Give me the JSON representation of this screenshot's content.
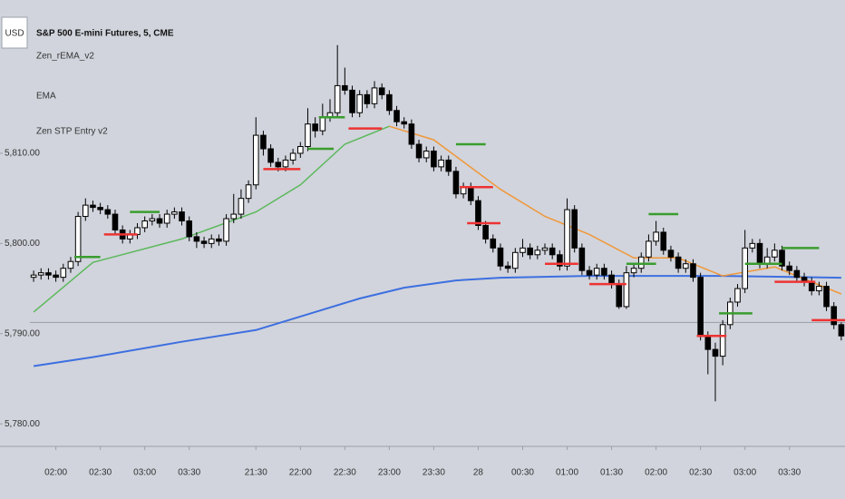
{
  "chart_data": {
    "type": "candlestick",
    "title": "S&P 500 E-mini Futures, 5, CME",
    "currency": "USD",
    "indicators": [
      "Zen_rEMA_v2",
      "EMA",
      "Zen STP Entry v2"
    ],
    "categories": [
      null,
      null,
      null,
      "02:00",
      null,
      null,
      null,
      null,
      null,
      "02:30",
      null,
      null,
      null,
      null,
      null,
      "03:00",
      null,
      null,
      null,
      null,
      null,
      "03:30",
      null,
      null,
      null,
      null,
      null,
      null,
      null,
      null,
      "21:30",
      null,
      null,
      null,
      null,
      null,
      "22:00",
      null,
      null,
      null,
      null,
      null,
      "22:30",
      null,
      null,
      null,
      null,
      null,
      "23:00",
      null,
      null,
      null,
      null,
      null,
      "23:30",
      null,
      null,
      null,
      null,
      null,
      "28",
      null,
      null,
      null,
      null,
      null,
      "00:30",
      null,
      null,
      null,
      null,
      null,
      "01:00",
      null,
      null,
      null,
      null,
      null,
      "01:30",
      null,
      null,
      null,
      null,
      null,
      "02:00",
      null,
      null,
      null,
      null,
      null,
      "02:30",
      null,
      null,
      null,
      null,
      null,
      "03:00",
      null,
      null,
      null,
      null,
      null,
      "03:30",
      null,
      null,
      null,
      null,
      null,
      null,
      null
    ],
    "open": [
      5796.25,
      5796.5,
      5796.75,
      5796.5,
      5796.25,
      5797.25,
      5798,
      5803,
      5804.25,
      5804,
      5803.75,
      5803.25,
      5801.5,
      5800.5,
      5801,
      5801.75,
      5802.5,
      5802.75,
      5802.25,
      5803.25,
      5803.5,
      5802.5,
      5800.75,
      5800.25,
      5800,
      5800.5,
      5800.25,
      5802.75,
      5803.25,
      5805,
      5806.5,
      5812,
      5810.5,
      5809,
      5808.5,
      5809.25,
      5810,
      5810.75,
      5813.25,
      5812.5,
      5814,
      5814.5,
      5817.5,
      5817,
      5814.5,
      5816.5,
      5815.5,
      5817.25,
      5816.5,
      5814.75,
      5813.5,
      5813.25,
      5811,
      5809.5,
      5810.25,
      5808.5,
      5809.25,
      5808,
      5805.5,
      5806.25,
      5804.75,
      5802,
      5800.5,
      5799.5,
      5797.5,
      5797.25,
      5799,
      5799.5,
      5798.75,
      5799.25,
      5799.5,
      5798.75,
      5797.5,
      5803.75,
      5799.5,
      5797,
      5796.5,
      5797.25,
      5796.5,
      5795.5,
      5793,
      5796.75,
      5797.25,
      5798.5,
      5800.25,
      5801.25,
      5799.25,
      5798.5,
      5797.25,
      5797.75,
      5796.25,
      5789.75,
      5788.25,
      5787.5,
      5791,
      5793.5,
      5795,
      5799.5,
      5800,
      5797.75,
      5798.5,
      5799.25,
      5797.5,
      5797,
      5796.25,
      5795.75,
      5794.75,
      5795.25,
      5793,
      5791
    ],
    "high": [
      5797,
      5797.25,
      5797.25,
      5797,
      5797.75,
      5798.5,
      5803.5,
      5805,
      5804.75,
      5804.5,
      5804.25,
      5803.75,
      5802,
      5801.5,
      5802.25,
      5803,
      5803.25,
      5803.25,
      5803.75,
      5804,
      5804,
      5803,
      5801.25,
      5800.75,
      5801,
      5801,
      5803.25,
      5805.5,
      5806,
      5807,
      5814,
      5812.5,
      5811,
      5809.5,
      5809.75,
      5810.5,
      5811.25,
      5815,
      5814,
      5815.5,
      5816,
      5822,
      5819.5,
      5817.5,
      5817,
      5817,
      5818,
      5817.75,
      5817,
      5815.25,
      5814,
      5813.75,
      5811.5,
      5810.75,
      5810.75,
      5809.75,
      5809.75,
      5808.5,
      5806.75,
      5806.75,
      5805.25,
      5802.5,
      5801,
      5800,
      5798,
      5799.5,
      5800.5,
      5800,
      5799.75,
      5800,
      5800,
      5799.25,
      5805,
      5804.25,
      5800,
      5797.5,
      5797.75,
      5797.75,
      5797,
      5796,
      5797.5,
      5797.75,
      5799,
      5801,
      5802.5,
      5801.75,
      5799.75,
      5799,
      5798.25,
      5798.25,
      5796.75,
      5790.25,
      5789,
      5791.5,
      5794,
      5795.5,
      5801.5,
      5800.5,
      5800.5,
      5799.5,
      5800,
      5799.75,
      5798,
      5797.5,
      5796.75,
      5796.25,
      5795.75,
      5795.75,
      5793.5,
      5791.25
    ],
    "low": [
      5795.75,
      5796,
      5796,
      5795.75,
      5795.75,
      5796.75,
      5797.5,
      5802.5,
      5803.5,
      5803.25,
      5802.75,
      5801,
      5800,
      5800,
      5800.5,
      5801.25,
      5802,
      5801.75,
      5801.75,
      5802.75,
      5802,
      5800.25,
      5799.5,
      5799.5,
      5799.5,
      5799.75,
      5799.75,
      5802.25,
      5802.75,
      5804.5,
      5806,
      5809.75,
      5808.5,
      5808,
      5808,
      5808.75,
      5809.5,
      5810.25,
      5811.75,
      5812,
      5813.5,
      5814,
      5816.5,
      5814,
      5814,
      5815,
      5815,
      5816,
      5814.25,
      5813,
      5812.75,
      5810.5,
      5809,
      5809,
      5808,
      5808,
      5807.5,
      5805,
      5805,
      5804.25,
      5801.5,
      5800,
      5799,
      5797,
      5796.75,
      5796.75,
      5798.5,
      5798.25,
      5798.25,
      5798.75,
      5798.25,
      5797,
      5797,
      5799,
      5796.5,
      5796,
      5796,
      5796,
      5795,
      5792.75,
      5792.75,
      5796.25,
      5796.75,
      5798,
      5799.75,
      5798.75,
      5798,
      5796.75,
      5796.75,
      5795.75,
      5789.25,
      5785.5,
      5782.5,
      5786.5,
      5790.5,
      5793,
      5794.5,
      5799,
      5797.25,
      5797.25,
      5798,
      5797,
      5796.5,
      5795.75,
      5795.25,
      5794.25,
      5794.25,
      5792.5,
      5790.5,
      5789.25
    ],
    "close": [
      5796.5,
      5796.75,
      5796.5,
      5796.25,
      5797.25,
      5798,
      5803,
      5804.25,
      5804,
      5803.75,
      5803.25,
      5801.5,
      5800.5,
      5801,
      5801.75,
      5802.5,
      5802.75,
      5802.25,
      5803.25,
      5803.5,
      5802.5,
      5800.75,
      5800.25,
      5800,
      5800.5,
      5800.25,
      5802.75,
      5803.25,
      5805,
      5806.5,
      5812,
      5810.5,
      5809,
      5808.5,
      5809.25,
      5810,
      5810.75,
      5813.25,
      5812.5,
      5814,
      5814.5,
      5817.5,
      5817,
      5814.5,
      5816.5,
      5815.5,
      5817.25,
      5816.5,
      5814.75,
      5813.5,
      5813.25,
      5811,
      5809.5,
      5810.25,
      5808.5,
      5809.25,
      5808,
      5805.5,
      5806.25,
      5804.75,
      5802,
      5800.5,
      5799.5,
      5797.5,
      5797.25,
      5799,
      5799.5,
      5798.75,
      5799.25,
      5799.5,
      5798.75,
      5797.5,
      5803.75,
      5799.5,
      5797,
      5796.5,
      5797.25,
      5796.5,
      5795.5,
      5793,
      5796.75,
      5797.25,
      5798.5,
      5800.25,
      5801.25,
      5799.25,
      5798.5,
      5797.25,
      5797.75,
      5796.25,
      5789.75,
      5788.25,
      5787.5,
      5791,
      5793.5,
      5795,
      5799.5,
      5800,
      5797.75,
      5798.5,
      5799.25,
      5797.5,
      5797,
      5796.25,
      5795.75,
      5794.75,
      5795.25,
      5793,
      5791,
      5789.75
    ],
    "up_color": "#ffffff",
    "down_color": "#000000",
    "ylim": [
      5777.5,
      5827
    ],
    "yticks": [
      {
        "value": 5780,
        "label": "5,780.00"
      },
      {
        "value": 5790,
        "label": "5,790.00"
      },
      {
        "value": 5800,
        "label": "5,800.00"
      },
      {
        "value": 5810,
        "label": "5,810.00"
      }
    ],
    "reference_line": 5791.25,
    "series": [
      {
        "color": "#3d6fe0",
        "x": [
          0,
          8,
          20,
          30,
          38,
          44,
          50,
          57,
          63,
          75,
          93,
          109
        ],
        "values": [
          5786.4,
          5787.4,
          5789.1,
          5790.4,
          5792.4,
          5793.9,
          5795.1,
          5795.9,
          5796.2,
          5796.4,
          5796.4,
          5796.2
        ]
      },
      {
        "color": "#5cb85c",
        "x": [
          0,
          8,
          20,
          30,
          36,
          42,
          48
        ],
        "values": [
          5792.4,
          5797.9,
          5800.5,
          5803.5,
          5806.5,
          5811,
          5813
        ]
      },
      {
        "color": "#f0983a",
        "x": [
          48,
          54,
          63,
          69,
          75,
          81,
          87,
          93,
          100,
          109
        ],
        "values": [
          5813,
          5811.5,
          5806,
          5803,
          5801,
          5798.4,
          5798.4,
          5796.4,
          5797.4,
          5794.4
        ]
      }
    ],
    "levels": [
      {
        "color": "#3a9d2e",
        "x": [
          5.5,
          9
        ],
        "value": 5798.5
      },
      {
        "color": "#ee3333",
        "x": [
          9.5,
          14
        ],
        "value": 5801
      },
      {
        "color": "#3a9d2e",
        "x": [
          13,
          17
        ],
        "value": 5803.5
      },
      {
        "color": "#ee3333",
        "x": [
          31,
          36
        ],
        "value": 5808.25
      },
      {
        "color": "#3a9d2e",
        "x": [
          37,
          40.5
        ],
        "value": 5810.5
      },
      {
        "color": "#3a9d2e",
        "x": [
          38.5,
          42
        ],
        "value": 5814
      },
      {
        "color": "#ee3333",
        "x": [
          42.5,
          47
        ],
        "value": 5812.75
      },
      {
        "color": "#3a9d2e",
        "x": [
          57,
          61
        ],
        "value": 5811
      },
      {
        "color": "#ee3333",
        "x": [
          57.5,
          62
        ],
        "value": 5806.25
      },
      {
        "color": "#ee3333",
        "x": [
          58.5,
          63
        ],
        "value": 5802.25
      },
      {
        "color": "#ee3333",
        "x": [
          69,
          73.5
        ],
        "value": 5797.75
      },
      {
        "color": "#ee3333",
        "x": [
          75,
          80
        ],
        "value": 5795.5
      },
      {
        "color": "#3a9d2e",
        "x": [
          80,
          84
        ],
        "value": 5797.75
      },
      {
        "color": "#3a9d2e",
        "x": [
          83,
          87
        ],
        "value": 5803.25
      },
      {
        "color": "#ee3333",
        "x": [
          89.5,
          93.5
        ],
        "value": 5789.75
      },
      {
        "color": "#3a9d2e",
        "x": [
          92.5,
          97
        ],
        "value": 5792.25
      },
      {
        "color": "#3a9d2e",
        "x": [
          96,
          101
        ],
        "value": 5797.75
      },
      {
        "color": "#3a9d2e",
        "x": [
          101,
          106
        ],
        "value": 5799.5
      },
      {
        "color": "#ee3333",
        "x": [
          100,
          105.5
        ],
        "value": 5795.75
      },
      {
        "color": "#ee3333",
        "x": [
          105,
          109.5
        ],
        "value": 5791.5
      }
    ]
  }
}
